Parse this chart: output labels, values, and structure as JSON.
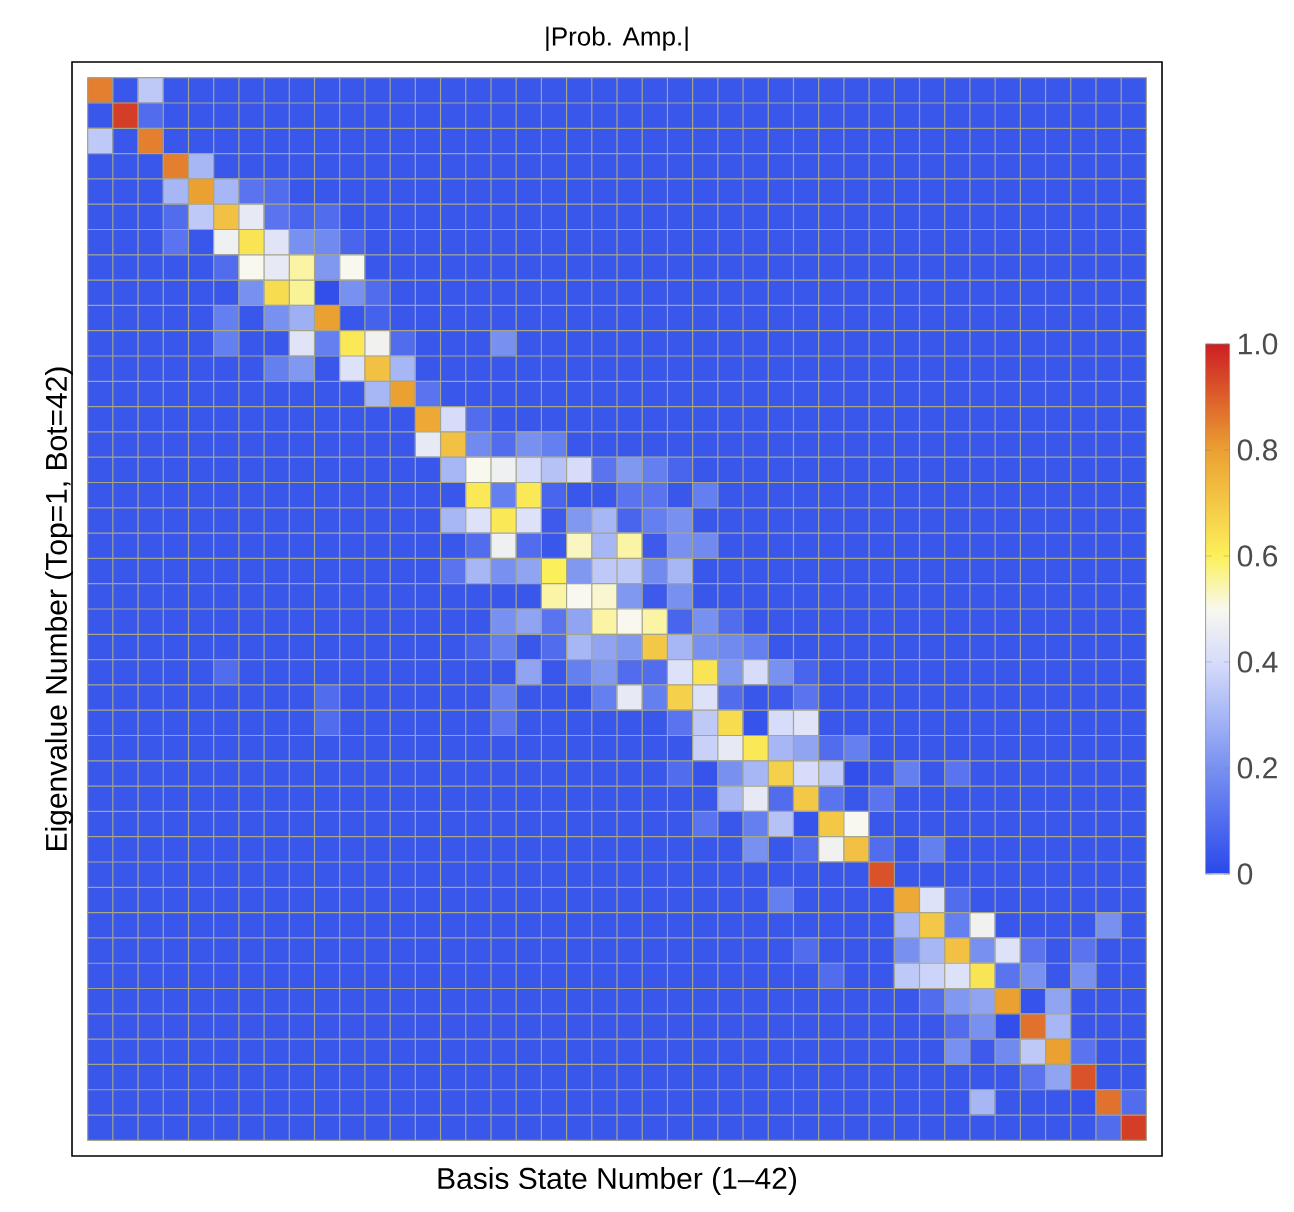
{
  "chart_data": {
    "type": "heatmap",
    "title": "|Prob. Amp.|",
    "xlabel": "Basis State Number (1–42)",
    "ylabel": "Eigenvalue Number (Top=1, Bot=42)",
    "categories": [
      null,
      null,
      null,
      null,
      null,
      null,
      null,
      null,
      null,
      null,
      null,
      null,
      null,
      null,
      null,
      null,
      null,
      null,
      null,
      null,
      null,
      null,
      null,
      null,
      null,
      null,
      null,
      null,
      null,
      null,
      null,
      null,
      null,
      null,
      null,
      null,
      null,
      null,
      null,
      null,
      null,
      null
    ],
    "y_categories": [
      null,
      null,
      null,
      null,
      null,
      null,
      null,
      null,
      null,
      null,
      null,
      null,
      null,
      null,
      null,
      null,
      null,
      null,
      null,
      null,
      null,
      null,
      null,
      null,
      null,
      null,
      null,
      null,
      null,
      null,
      null,
      null,
      null,
      null,
      null,
      null,
      null,
      null,
      null,
      null,
      null,
      null
    ],
    "grid": true,
    "clim": [
      0,
      1
    ],
    "cticks": [
      0,
      0.2,
      0.4,
      0.6,
      0.8,
      {
        "value": 1,
        "label": "1.0"
      }
    ],
    "cells": [
      [
        0.85,
        0.04,
        0.35,
        0.04,
        0.04,
        0.04,
        0.04,
        0.04,
        0.04,
        0.04,
        0.04,
        0.04,
        0.04,
        0.04,
        0.04,
        0.04,
        0.04,
        0.04,
        0.04,
        0.04,
        0.04,
        0.04,
        0.04,
        0.04,
        0.04,
        0.04,
        0.04,
        0.04,
        0.04,
        0.04,
        0.04,
        0.04,
        0.04,
        0.04,
        0.04,
        0.04,
        0.04,
        0.04,
        0.04,
        0.04,
        0.04,
        0.04
      ],
      [
        0.04,
        0.95,
        0.1,
        0.04,
        0.04,
        0.04,
        0.04,
        0.04,
        0.04,
        0.04,
        0.04,
        0.04,
        0.04,
        0.04,
        0.04,
        0.04,
        0.04,
        0.04,
        0.04,
        0.04,
        0.04,
        0.04,
        0.04,
        0.04,
        0.04,
        0.04,
        0.04,
        0.04,
        0.04,
        0.04,
        0.04,
        0.04,
        0.04,
        0.04,
        0.04,
        0.04,
        0.04,
        0.04,
        0.04,
        0.04,
        0.04,
        0.04
      ],
      [
        0.35,
        0.04,
        0.85,
        0.04,
        0.04,
        0.04,
        0.04,
        0.04,
        0.04,
        0.04,
        0.04,
        0.04,
        0.04,
        0.04,
        0.04,
        0.04,
        0.04,
        0.04,
        0.04,
        0.04,
        0.04,
        0.04,
        0.04,
        0.04,
        0.04,
        0.04,
        0.04,
        0.04,
        0.04,
        0.04,
        0.04,
        0.04,
        0.04,
        0.04,
        0.04,
        0.04,
        0.04,
        0.04,
        0.04,
        0.04,
        0.04,
        0.04
      ],
      [
        0.04,
        0.04,
        0.04,
        0.85,
        0.3,
        0.04,
        0.04,
        0.04,
        0.04,
        0.04,
        0.04,
        0.04,
        0.04,
        0.04,
        0.04,
        0.04,
        0.04,
        0.04,
        0.04,
        0.04,
        0.04,
        0.04,
        0.04,
        0.04,
        0.04,
        0.04,
        0.04,
        0.04,
        0.04,
        0.04,
        0.04,
        0.04,
        0.04,
        0.04,
        0.04,
        0.04,
        0.04,
        0.04,
        0.04,
        0.04,
        0.04,
        0.04
      ],
      [
        0.04,
        0.04,
        0.04,
        0.3,
        0.8,
        0.3,
        0.12,
        0.1,
        0.04,
        0.04,
        0.04,
        0.04,
        0.04,
        0.04,
        0.04,
        0.04,
        0.04,
        0.04,
        0.04,
        0.04,
        0.04,
        0.04,
        0.04,
        0.04,
        0.04,
        0.04,
        0.04,
        0.04,
        0.04,
        0.04,
        0.04,
        0.04,
        0.04,
        0.04,
        0.04,
        0.04,
        0.04,
        0.04,
        0.04,
        0.04,
        0.04,
        0.04
      ],
      [
        0.04,
        0.04,
        0.04,
        0.1,
        0.35,
        0.72,
        0.45,
        0.12,
        0.08,
        0.1,
        0.04,
        0.04,
        0.04,
        0.04,
        0.04,
        0.04,
        0.04,
        0.04,
        0.04,
        0.04,
        0.04,
        0.04,
        0.04,
        0.04,
        0.04,
        0.04,
        0.04,
        0.04,
        0.04,
        0.04,
        0.04,
        0.04,
        0.04,
        0.04,
        0.04,
        0.04,
        0.04,
        0.04,
        0.04,
        0.04,
        0.04,
        0.04
      ],
      [
        0.04,
        0.04,
        0.04,
        0.12,
        0.04,
        0.47,
        0.63,
        0.43,
        0.2,
        0.18,
        0.08,
        0.04,
        0.04,
        0.04,
        0.04,
        0.04,
        0.04,
        0.04,
        0.04,
        0.04,
        0.04,
        0.04,
        0.04,
        0.04,
        0.04,
        0.04,
        0.04,
        0.04,
        0.04,
        0.04,
        0.04,
        0.04,
        0.04,
        0.04,
        0.04,
        0.04,
        0.04,
        0.04,
        0.04,
        0.04,
        0.04,
        0.04
      ],
      [
        0.04,
        0.04,
        0.04,
        0.04,
        0.04,
        0.1,
        0.5,
        0.45,
        0.55,
        0.22,
        0.5,
        0.04,
        0.04,
        0.04,
        0.04,
        0.04,
        0.04,
        0.04,
        0.04,
        0.04,
        0.04,
        0.04,
        0.04,
        0.04,
        0.04,
        0.04,
        0.04,
        0.04,
        0.04,
        0.04,
        0.04,
        0.04,
        0.04,
        0.04,
        0.04,
        0.04,
        0.04,
        0.04,
        0.04,
        0.04,
        0.04,
        0.04
      ],
      [
        0.04,
        0.04,
        0.04,
        0.04,
        0.04,
        0.04,
        0.2,
        0.65,
        0.56,
        0.02,
        0.2,
        0.1,
        0.04,
        0.04,
        0.04,
        0.04,
        0.04,
        0.04,
        0.04,
        0.04,
        0.04,
        0.04,
        0.04,
        0.04,
        0.04,
        0.04,
        0.04,
        0.04,
        0.04,
        0.04,
        0.04,
        0.04,
        0.04,
        0.04,
        0.04,
        0.04,
        0.04,
        0.04,
        0.04,
        0.04,
        0.04,
        0.04
      ],
      [
        0.04,
        0.04,
        0.04,
        0.04,
        0.04,
        0.15,
        0.04,
        0.2,
        0.28,
        0.8,
        0.04,
        0.07,
        0.04,
        0.04,
        0.04,
        0.04,
        0.04,
        0.04,
        0.04,
        0.04,
        0.04,
        0.04,
        0.04,
        0.04,
        0.04,
        0.04,
        0.04,
        0.04,
        0.04,
        0.04,
        0.04,
        0.04,
        0.04,
        0.04,
        0.04,
        0.04,
        0.04,
        0.04,
        0.04,
        0.04,
        0.04,
        0.04
      ],
      [
        0.04,
        0.04,
        0.04,
        0.04,
        0.04,
        0.15,
        0.04,
        0.04,
        0.43,
        0.15,
        0.62,
        0.48,
        0.1,
        0.04,
        0.04,
        0.04,
        0.2,
        0.04,
        0.04,
        0.04,
        0.04,
        0.04,
        0.04,
        0.04,
        0.04,
        0.04,
        0.04,
        0.04,
        0.04,
        0.04,
        0.04,
        0.04,
        0.04,
        0.04,
        0.04,
        0.04,
        0.04,
        0.04,
        0.04,
        0.04,
        0.04,
        0.04
      ],
      [
        0.04,
        0.04,
        0.04,
        0.04,
        0.04,
        0.04,
        0.04,
        0.15,
        0.22,
        0.04,
        0.42,
        0.72,
        0.3,
        0.04,
        0.04,
        0.04,
        0.04,
        0.04,
        0.04,
        0.04,
        0.04,
        0.04,
        0.04,
        0.04,
        0.04,
        0.04,
        0.04,
        0.04,
        0.04,
        0.04,
        0.04,
        0.04,
        0.04,
        0.04,
        0.04,
        0.04,
        0.04,
        0.04,
        0.04,
        0.04,
        0.04,
        0.04
      ],
      [
        0.04,
        0.04,
        0.04,
        0.04,
        0.04,
        0.04,
        0.04,
        0.04,
        0.04,
        0.04,
        0.04,
        0.3,
        0.8,
        0.12,
        0.04,
        0.04,
        0.04,
        0.04,
        0.04,
        0.04,
        0.04,
        0.04,
        0.04,
        0.04,
        0.04,
        0.04,
        0.04,
        0.04,
        0.04,
        0.04,
        0.04,
        0.04,
        0.04,
        0.04,
        0.04,
        0.04,
        0.04,
        0.04,
        0.04,
        0.04,
        0.04,
        0.04
      ],
      [
        0.04,
        0.04,
        0.04,
        0.04,
        0.04,
        0.04,
        0.04,
        0.04,
        0.04,
        0.04,
        0.04,
        0.04,
        0.04,
        0.78,
        0.4,
        0.1,
        0.04,
        0.04,
        0.04,
        0.04,
        0.04,
        0.04,
        0.04,
        0.04,
        0.04,
        0.04,
        0.04,
        0.04,
        0.04,
        0.04,
        0.04,
        0.04,
        0.04,
        0.04,
        0.04,
        0.04,
        0.04,
        0.04,
        0.04,
        0.04,
        0.04,
        0.04
      ],
      [
        0.04,
        0.04,
        0.04,
        0.04,
        0.04,
        0.04,
        0.04,
        0.04,
        0.04,
        0.04,
        0.04,
        0.04,
        0.04,
        0.45,
        0.72,
        0.18,
        0.1,
        0.2,
        0.15,
        0.04,
        0.04,
        0.04,
        0.04,
        0.04,
        0.04,
        0.04,
        0.04,
        0.04,
        0.04,
        0.04,
        0.04,
        0.04,
        0.04,
        0.04,
        0.04,
        0.04,
        0.04,
        0.04,
        0.04,
        0.04,
        0.04,
        0.04
      ],
      [
        0.04,
        0.04,
        0.04,
        0.04,
        0.04,
        0.04,
        0.04,
        0.04,
        0.04,
        0.04,
        0.04,
        0.04,
        0.04,
        0.04,
        0.3,
        0.5,
        0.47,
        0.4,
        0.33,
        0.4,
        0.12,
        0.22,
        0.15,
        0.08,
        0.04,
        0.04,
        0.04,
        0.04,
        0.04,
        0.04,
        0.04,
        0.04,
        0.04,
        0.04,
        0.04,
        0.04,
        0.04,
        0.04,
        0.04,
        0.04,
        0.04,
        0.04
      ],
      [
        0.04,
        0.04,
        0.04,
        0.04,
        0.04,
        0.04,
        0.04,
        0.04,
        0.04,
        0.04,
        0.04,
        0.04,
        0.04,
        0.04,
        0.04,
        0.62,
        0.15,
        0.62,
        0.08,
        0.04,
        0.04,
        0.12,
        0.12,
        0.04,
        0.15,
        0.04,
        0.04,
        0.04,
        0.04,
        0.04,
        0.04,
        0.04,
        0.04,
        0.04,
        0.04,
        0.04,
        0.04,
        0.04,
        0.04,
        0.04,
        0.04,
        0.04
      ],
      [
        0.04,
        0.04,
        0.04,
        0.04,
        0.04,
        0.04,
        0.04,
        0.04,
        0.04,
        0.04,
        0.04,
        0.04,
        0.04,
        0.04,
        0.3,
        0.42,
        0.62,
        0.42,
        0.05,
        0.22,
        0.3,
        0.08,
        0.15,
        0.2,
        0.04,
        0.04,
        0.04,
        0.04,
        0.04,
        0.04,
        0.04,
        0.04,
        0.04,
        0.04,
        0.04,
        0.04,
        0.04,
        0.04,
        0.04,
        0.04,
        0.04,
        0.04
      ],
      [
        0.04,
        0.04,
        0.04,
        0.04,
        0.04,
        0.04,
        0.04,
        0.04,
        0.04,
        0.04,
        0.04,
        0.04,
        0.04,
        0.04,
        0.04,
        0.1,
        0.47,
        0.1,
        0.04,
        0.53,
        0.3,
        0.55,
        0.05,
        0.2,
        0.18,
        0.04,
        0.04,
        0.04,
        0.04,
        0.04,
        0.04,
        0.04,
        0.04,
        0.04,
        0.04,
        0.04,
        0.04,
        0.04,
        0.04,
        0.04,
        0.04,
        0.04
      ],
      [
        0.04,
        0.04,
        0.04,
        0.04,
        0.04,
        0.04,
        0.04,
        0.04,
        0.04,
        0.04,
        0.04,
        0.04,
        0.04,
        0.04,
        0.12,
        0.3,
        0.2,
        0.25,
        0.6,
        0.22,
        0.35,
        0.35,
        0.18,
        0.3,
        0.04,
        0.04,
        0.04,
        0.04,
        0.04,
        0.04,
        0.04,
        0.04,
        0.04,
        0.04,
        0.04,
        0.04,
        0.04,
        0.04,
        0.04,
        0.04,
        0.04,
        0.04
      ],
      [
        0.04,
        0.04,
        0.04,
        0.04,
        0.04,
        0.04,
        0.04,
        0.04,
        0.04,
        0.04,
        0.04,
        0.04,
        0.04,
        0.04,
        0.04,
        0.04,
        0.04,
        0.04,
        0.55,
        0.5,
        0.52,
        0.22,
        0.05,
        0.2,
        0.04,
        0.04,
        0.04,
        0.04,
        0.04,
        0.04,
        0.04,
        0.04,
        0.04,
        0.04,
        0.04,
        0.04,
        0.04,
        0.04,
        0.04,
        0.04,
        0.04,
        0.04
      ],
      [
        0.04,
        0.04,
        0.04,
        0.04,
        0.04,
        0.04,
        0.04,
        0.04,
        0.04,
        0.04,
        0.04,
        0.04,
        0.04,
        0.04,
        0.04,
        0.04,
        0.2,
        0.25,
        0.12,
        0.25,
        0.55,
        0.5,
        0.55,
        0.08,
        0.2,
        0.1,
        0.04,
        0.04,
        0.04,
        0.04,
        0.04,
        0.04,
        0.04,
        0.04,
        0.04,
        0.04,
        0.04,
        0.04,
        0.04,
        0.04,
        0.04,
        0.04
      ],
      [
        0.04,
        0.04,
        0.04,
        0.04,
        0.04,
        0.04,
        0.04,
        0.04,
        0.04,
        0.04,
        0.04,
        0.04,
        0.04,
        0.04,
        0.04,
        0.07,
        0.15,
        0.04,
        0.1,
        0.3,
        0.25,
        0.22,
        0.7,
        0.3,
        0.2,
        0.18,
        0.15,
        0.04,
        0.04,
        0.04,
        0.04,
        0.04,
        0.04,
        0.04,
        0.04,
        0.04,
        0.04,
        0.04,
        0.04,
        0.04,
        0.04,
        0.04
      ],
      [
        0.04,
        0.04,
        0.04,
        0.04,
        0.04,
        0.1,
        0.04,
        0.04,
        0.04,
        0.04,
        0.04,
        0.04,
        0.04,
        0.04,
        0.04,
        0.04,
        0.04,
        0.25,
        0.04,
        0.15,
        0.22,
        0.1,
        0.1,
        0.42,
        0.63,
        0.22,
        0.4,
        0.2,
        0.08,
        0.04,
        0.04,
        0.04,
        0.04,
        0.04,
        0.04,
        0.04,
        0.04,
        0.04,
        0.04,
        0.04,
        0.04,
        0.04
      ],
      [
        0.04,
        0.04,
        0.04,
        0.04,
        0.04,
        0.04,
        0.04,
        0.04,
        0.04,
        0.1,
        0.04,
        0.04,
        0.04,
        0.04,
        0.04,
        0.04,
        0.15,
        0.04,
        0.04,
        0.04,
        0.15,
        0.45,
        0.15,
        0.68,
        0.42,
        0.1,
        0.04,
        0.05,
        0.12,
        0.04,
        0.04,
        0.04,
        0.04,
        0.04,
        0.04,
        0.04,
        0.04,
        0.04,
        0.04,
        0.04,
        0.04,
        0.04
      ],
      [
        0.04,
        0.04,
        0.04,
        0.04,
        0.04,
        0.04,
        0.04,
        0.04,
        0.04,
        0.1,
        0.04,
        0.04,
        0.04,
        0.04,
        0.04,
        0.04,
        0.12,
        0.04,
        0.04,
        0.04,
        0.04,
        0.04,
        0.04,
        0.12,
        0.35,
        0.65,
        0.03,
        0.4,
        0.43,
        0.04,
        0.04,
        0.04,
        0.04,
        0.04,
        0.04,
        0.04,
        0.04,
        0.04,
        0.04,
        0.04,
        0.04,
        0.04
      ],
      [
        0.04,
        0.04,
        0.04,
        0.04,
        0.04,
        0.04,
        0.04,
        0.04,
        0.04,
        0.04,
        0.04,
        0.04,
        0.04,
        0.04,
        0.04,
        0.04,
        0.04,
        0.04,
        0.04,
        0.04,
        0.04,
        0.04,
        0.04,
        0.04,
        0.37,
        0.45,
        0.62,
        0.3,
        0.25,
        0.1,
        0.15,
        0.04,
        0.04,
        0.04,
        0.04,
        0.04,
        0.04,
        0.04,
        0.04,
        0.04,
        0.04,
        0.04
      ],
      [
        0.04,
        0.04,
        0.04,
        0.04,
        0.04,
        0.04,
        0.04,
        0.04,
        0.04,
        0.04,
        0.04,
        0.04,
        0.04,
        0.04,
        0.04,
        0.04,
        0.04,
        0.04,
        0.04,
        0.04,
        0.04,
        0.04,
        0.04,
        0.1,
        0.03,
        0.2,
        0.3,
        0.68,
        0.4,
        0.35,
        0.02,
        0.04,
        0.15,
        0.04,
        0.12,
        0.04,
        0.04,
        0.04,
        0.04,
        0.04,
        0.04,
        0.04
      ],
      [
        0.04,
        0.04,
        0.04,
        0.04,
        0.04,
        0.04,
        0.04,
        0.04,
        0.04,
        0.04,
        0.04,
        0.04,
        0.04,
        0.04,
        0.04,
        0.04,
        0.04,
        0.04,
        0.04,
        0.04,
        0.04,
        0.04,
        0.04,
        0.04,
        0.04,
        0.3,
        0.45,
        0.1,
        0.7,
        0.12,
        0.04,
        0.12,
        0.04,
        0.04,
        0.04,
        0.04,
        0.04,
        0.04,
        0.04,
        0.04,
        0.04,
        0.04
      ],
      [
        0.04,
        0.04,
        0.04,
        0.04,
        0.04,
        0.04,
        0.04,
        0.04,
        0.04,
        0.04,
        0.04,
        0.04,
        0.04,
        0.04,
        0.04,
        0.04,
        0.04,
        0.04,
        0.04,
        0.04,
        0.04,
        0.04,
        0.04,
        0.04,
        0.12,
        0.04,
        0.15,
        0.33,
        0.03,
        0.7,
        0.5,
        0.04,
        0.04,
        0.04,
        0.04,
        0.04,
        0.04,
        0.04,
        0.04,
        0.04,
        0.04,
        0.04
      ],
      [
        0.04,
        0.04,
        0.04,
        0.04,
        0.04,
        0.04,
        0.04,
        0.04,
        0.04,
        0.04,
        0.04,
        0.04,
        0.04,
        0.04,
        0.04,
        0.04,
        0.04,
        0.04,
        0.04,
        0.04,
        0.04,
        0.04,
        0.04,
        0.04,
        0.04,
        0.04,
        0.2,
        0.04,
        0.1,
        0.48,
        0.72,
        0.1,
        0.04,
        0.15,
        0.04,
        0.04,
        0.04,
        0.04,
        0.04,
        0.04,
        0.04,
        0.04
      ],
      [
        0.04,
        0.04,
        0.04,
        0.04,
        0.04,
        0.04,
        0.04,
        0.04,
        0.04,
        0.04,
        0.04,
        0.04,
        0.04,
        0.04,
        0.04,
        0.04,
        0.04,
        0.04,
        0.04,
        0.04,
        0.04,
        0.04,
        0.04,
        0.04,
        0.04,
        0.04,
        0.04,
        0.04,
        0.04,
        0.04,
        0.04,
        0.92,
        0.04,
        0.04,
        0.04,
        0.04,
        0.04,
        0.04,
        0.04,
        0.04,
        0.04,
        0.04
      ],
      [
        0.04,
        0.04,
        0.04,
        0.04,
        0.04,
        0.04,
        0.04,
        0.04,
        0.04,
        0.04,
        0.04,
        0.04,
        0.04,
        0.04,
        0.04,
        0.04,
        0.04,
        0.04,
        0.04,
        0.04,
        0.04,
        0.04,
        0.04,
        0.04,
        0.04,
        0.04,
        0.04,
        0.15,
        0.04,
        0.04,
        0.04,
        0.04,
        0.78,
        0.42,
        0.1,
        0.04,
        0.04,
        0.04,
        0.04,
        0.04,
        0.04,
        0.04
      ],
      [
        0.04,
        0.04,
        0.04,
        0.04,
        0.04,
        0.04,
        0.04,
        0.04,
        0.04,
        0.04,
        0.04,
        0.04,
        0.04,
        0.04,
        0.04,
        0.04,
        0.04,
        0.04,
        0.04,
        0.04,
        0.04,
        0.04,
        0.04,
        0.04,
        0.04,
        0.04,
        0.04,
        0.04,
        0.04,
        0.04,
        0.04,
        0.04,
        0.3,
        0.7,
        0.15,
        0.48,
        0.04,
        0.04,
        0.04,
        0.04,
        0.2,
        0.04
      ],
      [
        0.04,
        0.04,
        0.04,
        0.04,
        0.04,
        0.04,
        0.04,
        0.04,
        0.04,
        0.04,
        0.04,
        0.04,
        0.04,
        0.04,
        0.04,
        0.04,
        0.04,
        0.04,
        0.04,
        0.04,
        0.04,
        0.04,
        0.04,
        0.04,
        0.04,
        0.04,
        0.04,
        0.04,
        0.1,
        0.04,
        0.04,
        0.04,
        0.2,
        0.3,
        0.72,
        0.2,
        0.42,
        0.12,
        0.04,
        0.12,
        0.04,
        0.04
      ],
      [
        0.04,
        0.04,
        0.04,
        0.04,
        0.04,
        0.04,
        0.04,
        0.04,
        0.04,
        0.04,
        0.04,
        0.04,
        0.04,
        0.04,
        0.04,
        0.04,
        0.04,
        0.04,
        0.04,
        0.04,
        0.04,
        0.04,
        0.04,
        0.04,
        0.04,
        0.04,
        0.04,
        0.04,
        0.04,
        0.1,
        0.04,
        0.04,
        0.35,
        0.38,
        0.42,
        0.63,
        0.12,
        0.2,
        0.04,
        0.2,
        0.04,
        0.04
      ],
      [
        0.04,
        0.04,
        0.04,
        0.04,
        0.04,
        0.04,
        0.04,
        0.04,
        0.04,
        0.04,
        0.04,
        0.04,
        0.04,
        0.04,
        0.04,
        0.04,
        0.04,
        0.04,
        0.04,
        0.04,
        0.04,
        0.04,
        0.04,
        0.04,
        0.04,
        0.04,
        0.04,
        0.04,
        0.04,
        0.04,
        0.04,
        0.04,
        0.04,
        0.1,
        0.22,
        0.25,
        0.8,
        0.03,
        0.25,
        0.04,
        0.04,
        0.04
      ],
      [
        0.04,
        0.04,
        0.04,
        0.04,
        0.04,
        0.04,
        0.04,
        0.04,
        0.04,
        0.04,
        0.04,
        0.04,
        0.04,
        0.04,
        0.04,
        0.04,
        0.04,
        0.04,
        0.04,
        0.04,
        0.04,
        0.04,
        0.04,
        0.04,
        0.04,
        0.04,
        0.04,
        0.04,
        0.04,
        0.04,
        0.04,
        0.04,
        0.04,
        0.04,
        0.1,
        0.2,
        0.02,
        0.87,
        0.3,
        0.04,
        0.04,
        0.04
      ],
      [
        0.04,
        0.04,
        0.04,
        0.04,
        0.04,
        0.04,
        0.04,
        0.04,
        0.04,
        0.04,
        0.04,
        0.04,
        0.04,
        0.04,
        0.04,
        0.04,
        0.04,
        0.04,
        0.04,
        0.04,
        0.04,
        0.04,
        0.04,
        0.04,
        0.04,
        0.04,
        0.04,
        0.04,
        0.04,
        0.04,
        0.04,
        0.04,
        0.04,
        0.04,
        0.2,
        0.05,
        0.18,
        0.35,
        0.8,
        0.12,
        0.04,
        0.04
      ],
      [
        0.04,
        0.04,
        0.04,
        0.04,
        0.04,
        0.04,
        0.04,
        0.04,
        0.04,
        0.04,
        0.04,
        0.04,
        0.04,
        0.04,
        0.04,
        0.04,
        0.04,
        0.04,
        0.04,
        0.04,
        0.04,
        0.04,
        0.04,
        0.04,
        0.04,
        0.04,
        0.04,
        0.04,
        0.04,
        0.04,
        0.04,
        0.04,
        0.04,
        0.04,
        0.04,
        0.04,
        0.04,
        0.12,
        0.25,
        0.92,
        0.04,
        0.04
      ],
      [
        0.04,
        0.04,
        0.04,
        0.04,
        0.04,
        0.04,
        0.04,
        0.04,
        0.04,
        0.04,
        0.04,
        0.04,
        0.04,
        0.04,
        0.04,
        0.04,
        0.04,
        0.04,
        0.04,
        0.04,
        0.04,
        0.04,
        0.04,
        0.04,
        0.04,
        0.04,
        0.04,
        0.04,
        0.04,
        0.04,
        0.04,
        0.04,
        0.04,
        0.04,
        0.04,
        0.3,
        0.04,
        0.04,
        0.04,
        0.03,
        0.87,
        0.1
      ],
      [
        0.04,
        0.04,
        0.04,
        0.04,
        0.04,
        0.04,
        0.04,
        0.04,
        0.04,
        0.04,
        0.04,
        0.04,
        0.04,
        0.04,
        0.04,
        0.04,
        0.04,
        0.04,
        0.04,
        0.04,
        0.04,
        0.04,
        0.04,
        0.04,
        0.04,
        0.04,
        0.04,
        0.04,
        0.04,
        0.04,
        0.04,
        0.04,
        0.04,
        0.04,
        0.04,
        0.04,
        0.04,
        0.04,
        0.04,
        0.04,
        0.1,
        0.95
      ]
    ]
  }
}
